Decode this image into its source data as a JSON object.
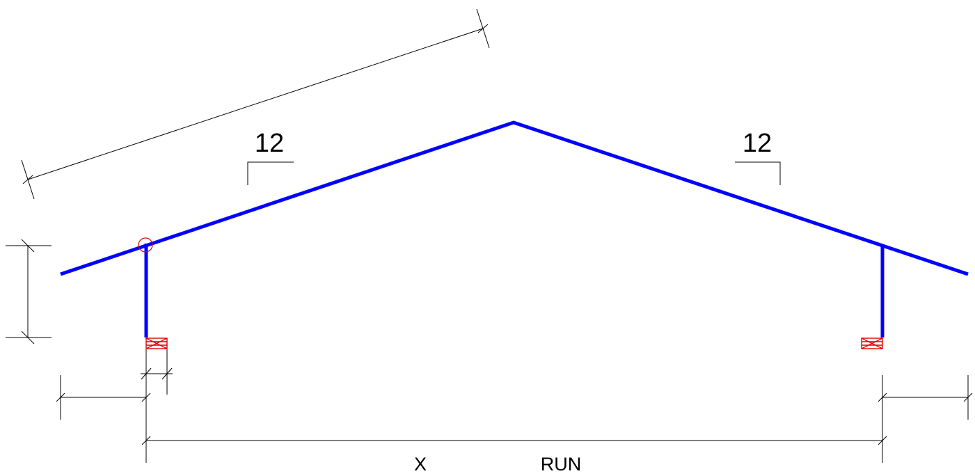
{
  "colors": {
    "background": "#ffffff",
    "truss": "#0000ff",
    "dimension": "#000000",
    "bearing": "#e00000",
    "marker": "#e00000"
  },
  "pitch": {
    "left": "12",
    "right": "12"
  },
  "labels": {
    "x": "X",
    "run": "RUN"
  },
  "icons": {
    "bearing": "crossed-box-icon",
    "heel_marker": "circle-marker-icon"
  }
}
